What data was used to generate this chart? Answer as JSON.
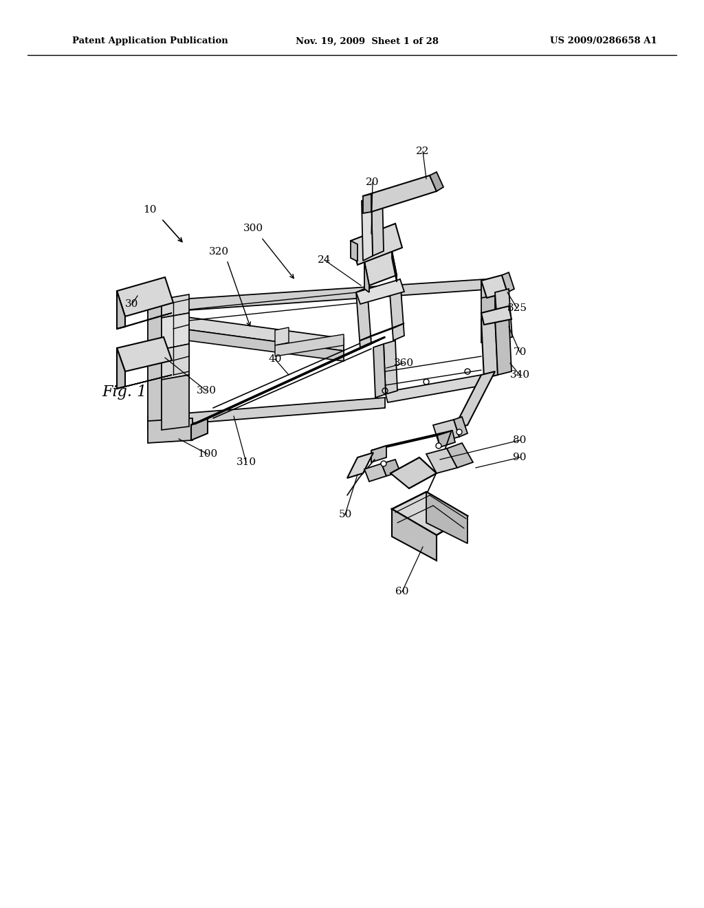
{
  "bg_color": "#ffffff",
  "header_left": "Patent Application Publication",
  "header_center": "Nov. 19, 2009  Sheet 1 of 28",
  "header_right": "US 2009/0286658 A1",
  "fig_label": "Fig. 1",
  "line_color": "#000000",
  "page_width": 10.24,
  "page_height": 13.2,
  "gray1": "#d8d8d8",
  "gray2": "#c0c0c0",
  "gray3": "#a8a8a8",
  "gray4": "#e8e8e8",
  "gray5": "#b8b8b8"
}
